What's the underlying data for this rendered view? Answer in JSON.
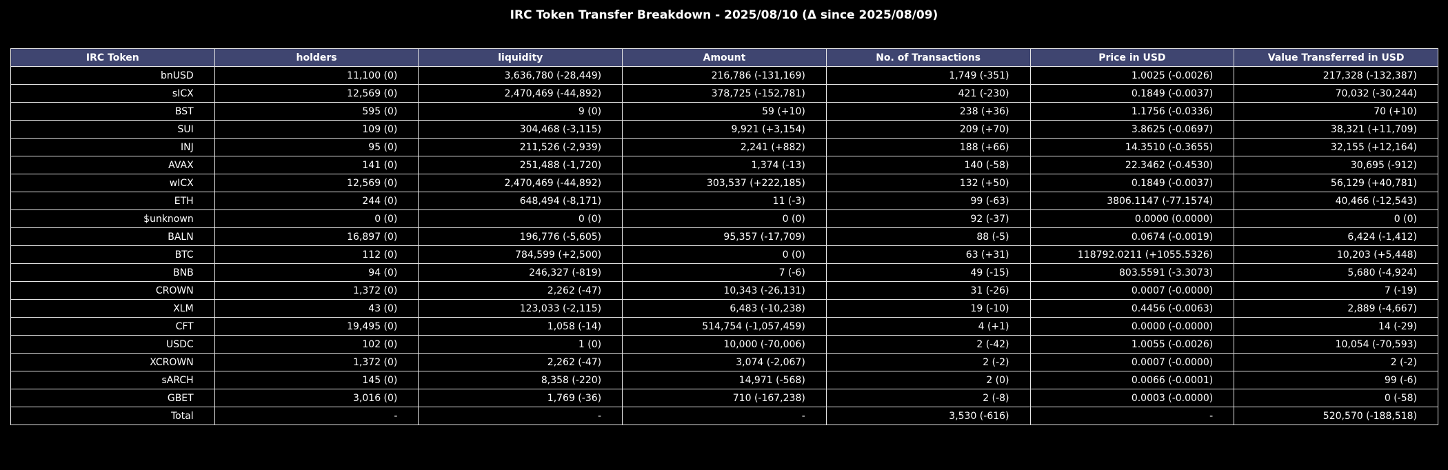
{
  "chart_data": {
    "type": "table",
    "title": "IRC Token Transfer Breakdown - 2025/08/10 (Δ since 2025/08/09)",
    "colors": {
      "header_bg": "#3f4570",
      "background": "#000000",
      "border": "#e6e6e6",
      "text": "#ffffff"
    },
    "columns": [
      "IRC Token",
      "holders",
      "liquidity",
      "Amount",
      "No. of Transactions",
      "Price in USD",
      "Value Transferred in USD"
    ],
    "rows": [
      [
        "bnUSD",
        "11,100 (0)",
        "3,636,780 (-28,449)",
        "216,786 (-131,169)",
        "1,749 (-351)",
        "1.0025 (-0.0026)",
        "217,328 (-132,387)"
      ],
      [
        "sICX",
        "12,569 (0)",
        "2,470,469 (-44,892)",
        "378,725 (-152,781)",
        "421 (-230)",
        "0.1849 (-0.0037)",
        "70,032 (-30,244)"
      ],
      [
        "BST",
        "595 (0)",
        "9 (0)",
        "59 (+10)",
        "238 (+36)",
        "1.1756 (-0.0336)",
        "70 (+10)"
      ],
      [
        "SUI",
        "109 (0)",
        "304,468 (-3,115)",
        "9,921 (+3,154)",
        "209 (+70)",
        "3.8625 (-0.0697)",
        "38,321 (+11,709)"
      ],
      [
        "INJ",
        "95 (0)",
        "211,526 (-2,939)",
        "2,241 (+882)",
        "188 (+66)",
        "14.3510 (-0.3655)",
        "32,155 (+12,164)"
      ],
      [
        "AVAX",
        "141 (0)",
        "251,488 (-1,720)",
        "1,374 (-13)",
        "140 (-58)",
        "22.3462 (-0.4530)",
        "30,695 (-912)"
      ],
      [
        "wICX",
        "12,569 (0)",
        "2,470,469 (-44,892)",
        "303,537 (+222,185)",
        "132 (+50)",
        "0.1849 (-0.0037)",
        "56,129 (+40,781)"
      ],
      [
        "ETH",
        "244 (0)",
        "648,494 (-8,171)",
        "11 (-3)",
        "99 (-63)",
        "3806.1147 (-77.1574)",
        "40,466 (-12,543)"
      ],
      [
        "$unknown",
        "0 (0)",
        "0 (0)",
        "0 (0)",
        "92 (-37)",
        "0.0000 (0.0000)",
        "0 (0)"
      ],
      [
        "BALN",
        "16,897 (0)",
        "196,776 (-5,605)",
        "95,357 (-17,709)",
        "88 (-5)",
        "0.0674 (-0.0019)",
        "6,424 (-1,412)"
      ],
      [
        "BTC",
        "112 (0)",
        "784,599 (+2,500)",
        "0 (0)",
        "63 (+31)",
        "118792.0211 (+1055.5326)",
        "10,203 (+5,448)"
      ],
      [
        "BNB",
        "94 (0)",
        "246,327 (-819)",
        "7 (-6)",
        "49 (-15)",
        "803.5591 (-3.3073)",
        "5,680 (-4,924)"
      ],
      [
        "CROWN",
        "1,372 (0)",
        "2,262 (-47)",
        "10,343 (-26,131)",
        "31 (-26)",
        "0.0007 (-0.0000)",
        "7 (-19)"
      ],
      [
        "XLM",
        "43 (0)",
        "123,033 (-2,115)",
        "6,483 (-10,238)",
        "19 (-10)",
        "0.4456 (-0.0063)",
        "2,889 (-4,667)"
      ],
      [
        "CFT",
        "19,495 (0)",
        "1,058 (-14)",
        "514,754 (-1,057,459)",
        "4 (+1)",
        "0.0000 (-0.0000)",
        "14 (-29)"
      ],
      [
        "USDC",
        "102 (0)",
        "1 (0)",
        "10,000 (-70,006)",
        "2 (-42)",
        "1.0055 (-0.0026)",
        "10,054 (-70,593)"
      ],
      [
        "XCROWN",
        "1,372 (0)",
        "2,262 (-47)",
        "3,074 (-2,067)",
        "2 (-2)",
        "0.0007 (-0.0000)",
        "2 (-2)"
      ],
      [
        "sARCH",
        "145 (0)",
        "8,358 (-220)",
        "14,971 (-568)",
        "2 (0)",
        "0.0066 (-0.0001)",
        "99 (-6)"
      ],
      [
        "GBET",
        "3,016 (0)",
        "1,769 (-36)",
        "710 (-167,238)",
        "2 (-8)",
        "0.0003 (-0.0000)",
        "0 (-58)"
      ],
      [
        "Total",
        "-",
        "-",
        "-",
        "3,530 (-616)",
        "-",
        "520,570 (-188,518)"
      ]
    ]
  }
}
